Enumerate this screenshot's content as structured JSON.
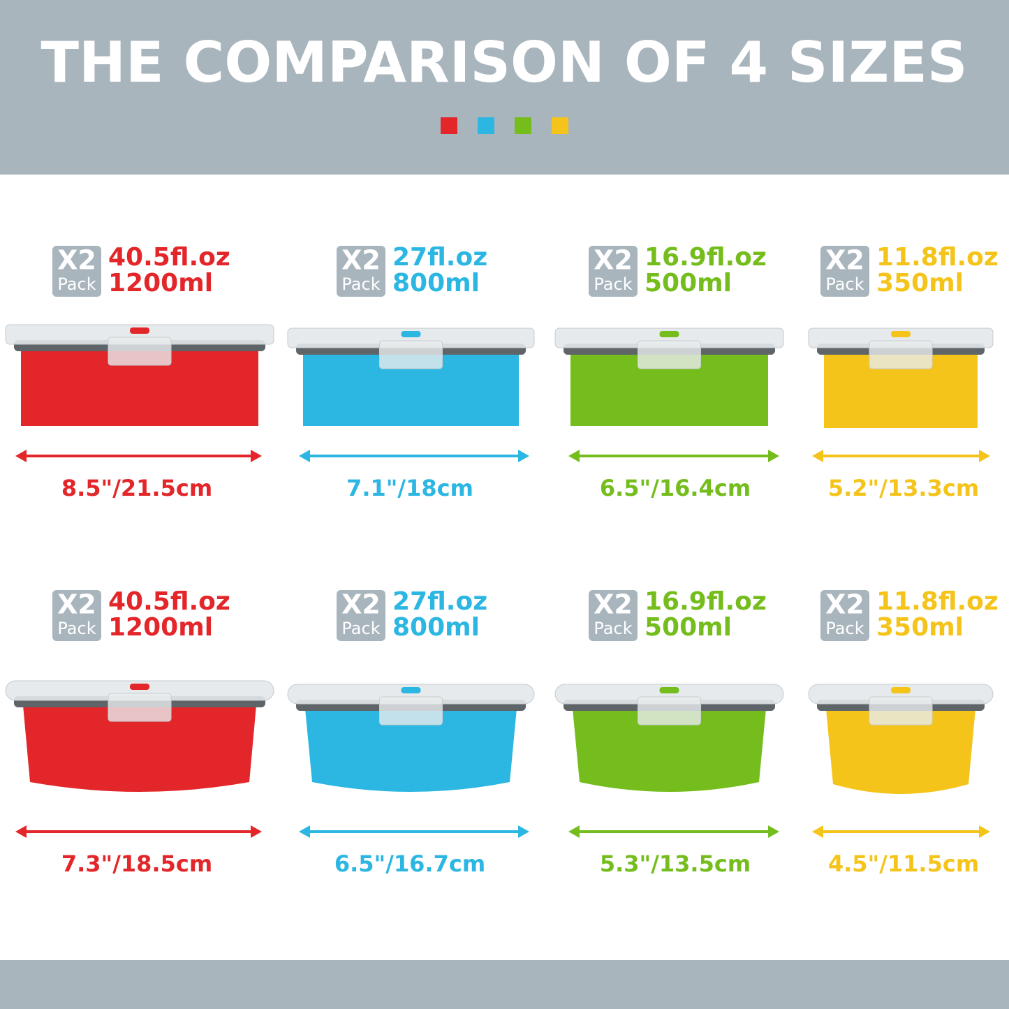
{
  "header": {
    "title": "THE COMPARISON OF 4 SIZES"
  },
  "rows": [
    {
      "items": [
        {
          "badge": "X2",
          "pack": "Pack",
          "capacity_oz": "40.5fl.oz",
          "capacity_ml": "1200ml",
          "size": "8.5\"/21.5cm",
          "color": "#e3262a"
        },
        {
          "badge": "X2",
          "pack": "Pack",
          "capacity_oz": "27fl.oz",
          "capacity_ml": "800ml",
          "size": "7.1\"/18cm",
          "color": "#2cb6e2"
        },
        {
          "badge": "X2",
          "pack": "Pack",
          "capacity_oz": "16.9fl.oz",
          "capacity_ml": "500ml",
          "size": "6.5\"/16.4cm",
          "color": "#74bd1c"
        },
        {
          "badge": "X2",
          "pack": "Pack",
          "capacity_oz": "11.8fl.oz",
          "capacity_ml": "350ml",
          "size": "5.2\"/13.3cm",
          "color": "#f4c41a"
        }
      ]
    },
    {
      "items": [
        {
          "badge": "X2",
          "pack": "Pack",
          "capacity_oz": "40.5fl.oz",
          "capacity_ml": "1200ml",
          "size": "7.3\"/18.5cm",
          "color": "#e3262a"
        },
        {
          "badge": "X2",
          "pack": "Pack",
          "capacity_oz": "27fl.oz",
          "capacity_ml": "800ml",
          "size": "6.5\"/16.7cm",
          "color": "#2cb6e2"
        },
        {
          "badge": "X2",
          "pack": "Pack",
          "capacity_oz": "16.9fl.oz",
          "capacity_ml": "500ml",
          "size": "5.3\"/13.5cm",
          "color": "#74bd1c"
        },
        {
          "badge": "X2",
          "pack": "Pack",
          "capacity_oz": "11.8fl.oz",
          "capacity_ml": "350ml",
          "size": "4.5\"/11.5cm",
          "color": "#f4c41a"
        }
      ]
    }
  ]
}
